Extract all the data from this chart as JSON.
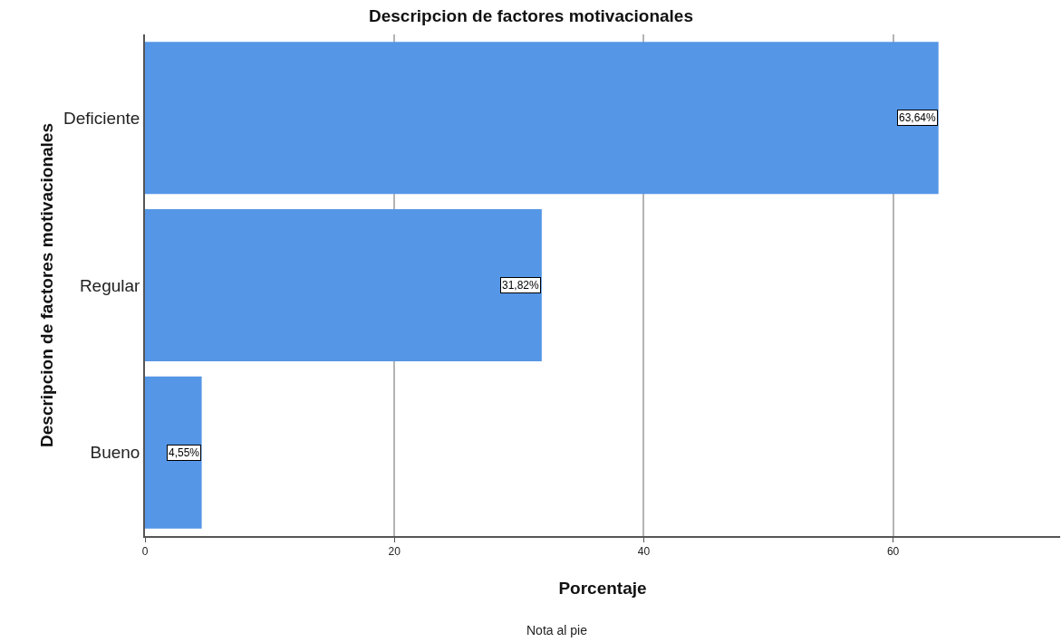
{
  "chart_data": {
    "type": "bar",
    "orientation": "horizontal",
    "title": "Descripcion de factores motivacionales",
    "xlabel": "Porcentaje",
    "ylabel": "Descripcion de factores motivacionales",
    "categories": [
      "Deficiente",
      "Regular",
      "Bueno"
    ],
    "values": [
      63.64,
      31.82,
      4.55
    ],
    "value_labels": [
      "63,64%",
      "31,82%",
      "4,55%"
    ],
    "color": "#5596e6",
    "xlim": [
      0,
      73.4
    ],
    "xticks": [
      0,
      20,
      40,
      60
    ],
    "grid": "x",
    "annotations": [
      "Nota al pie"
    ]
  }
}
